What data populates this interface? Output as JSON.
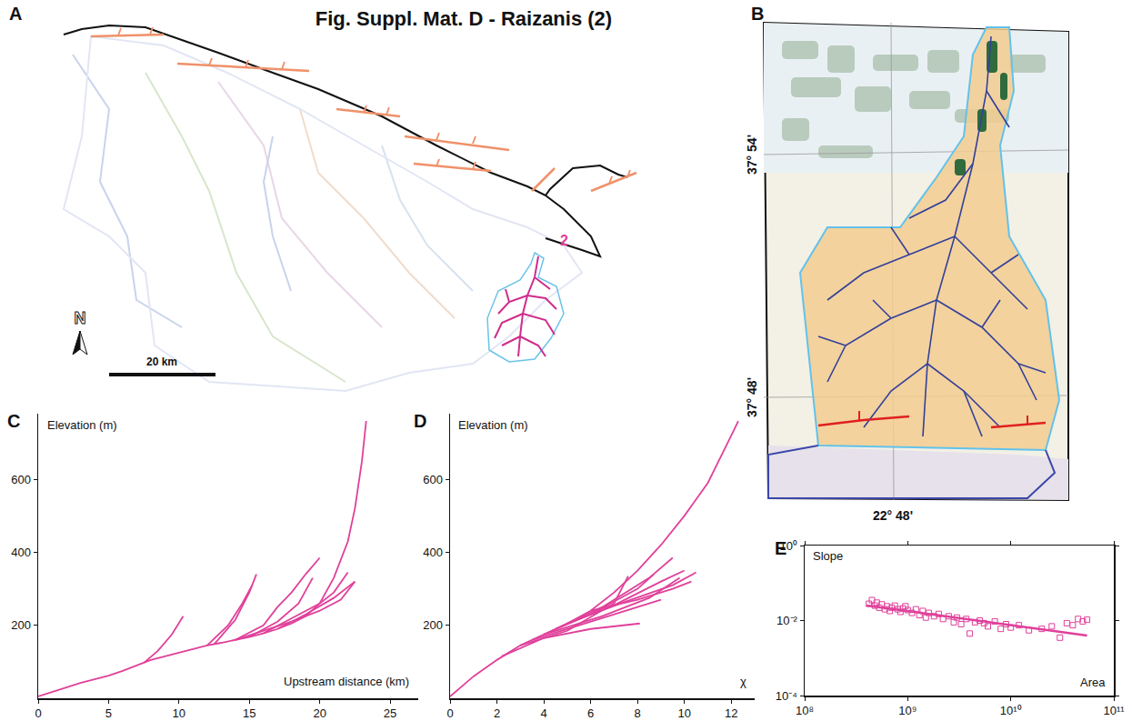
{
  "title": "Fig. Suppl. Mat. D - Raizanis (2)",
  "maps": {
    "A": {
      "panel": "A",
      "label": "2",
      "scale": "20 km",
      "north": "N"
    },
    "B": {
      "panel": "B",
      "lat": [
        "37° 54'",
        "37° 48'"
      ],
      "lon": "22° 48'"
    }
  },
  "chart_data": [
    {
      "panel": "C",
      "type": "line",
      "xlabel": "Upstream distance (km)",
      "ylabel": "Elevation (m)",
      "color": "#e0409a",
      "xlim": [
        0,
        27
      ],
      "ylim": [
        0,
        780
      ],
      "xticks": [
        0,
        5,
        10,
        15,
        20,
        25
      ],
      "yticks": [
        200,
        400,
        600
      ],
      "series": [
        {
          "x": [
            0,
            1,
            2,
            3,
            4,
            5,
            6,
            7,
            8,
            9,
            10,
            11,
            12,
            13,
            14,
            15,
            16,
            17,
            18,
            19,
            20,
            21,
            22,
            22.5,
            23,
            23.3
          ],
          "values": [
            5,
            18,
            30,
            42,
            52,
            62,
            75,
            90,
            105,
            115,
            125,
            135,
            145,
            152,
            160,
            168,
            178,
            190,
            205,
            225,
            260,
            330,
            430,
            520,
            650,
            760
          ]
        },
        {
          "x": [
            7.5,
            8.5,
            9.5,
            10.3
          ],
          "values": [
            97,
            130,
            175,
            225
          ]
        },
        {
          "x": [
            12,
            13.5,
            14.5,
            15.2
          ],
          "values": [
            145,
            200,
            260,
            310
          ]
        },
        {
          "x": [
            12.5,
            14,
            15,
            15.5
          ],
          "values": [
            148,
            215,
            290,
            340
          ]
        },
        {
          "x": [
            14,
            16,
            17,
            18,
            19,
            20
          ],
          "values": [
            160,
            200,
            250,
            290,
            340,
            385
          ]
        },
        {
          "x": [
            15,
            17,
            18.5,
            19.5
          ],
          "values": [
            168,
            210,
            260,
            330
          ]
        },
        {
          "x": [
            16,
            18,
            20,
            21,
            22
          ],
          "values": [
            178,
            220,
            260,
            290,
            345
          ]
        },
        {
          "x": [
            17,
            19,
            21,
            22.5
          ],
          "values": [
            190,
            230,
            275,
            320
          ]
        },
        {
          "x": [
            14,
            16,
            18,
            20,
            21.5,
            22.5
          ],
          "values": [
            160,
            185,
            210,
            240,
            270,
            320
          ]
        }
      ]
    },
    {
      "panel": "D",
      "type": "line",
      "xlabel": "χ",
      "ylabel": "Elevation (m)",
      "color": "#e0409a",
      "xlim": [
        0,
        13
      ],
      "ylim": [
        0,
        780
      ],
      "xticks": [
        0,
        2,
        4,
        6,
        8,
        10,
        12
      ],
      "yticks": [
        200,
        400,
        600
      ],
      "series": [
        {
          "x": [
            0,
            1,
            2,
            3,
            4,
            5,
            6,
            7,
            8,
            9,
            10,
            11,
            12,
            12.3
          ],
          "values": [
            5,
            60,
            105,
            145,
            175,
            205,
            240,
            290,
            350,
            420,
            500,
            590,
            720,
            760
          ]
        },
        {
          "x": [
            2.2,
            4,
            6,
            8.1
          ],
          "values": [
            115,
            165,
            190,
            205
          ]
        },
        {
          "x": [
            3,
            5,
            7,
            7.6
          ],
          "values": [
            145,
            185,
            260,
            335
          ]
        },
        {
          "x": [
            4,
            6,
            8,
            8.7
          ],
          "values": [
            175,
            230,
            300,
            340
          ]
        },
        {
          "x": [
            4.5,
            6.5,
            8.5,
            9.5
          ],
          "values": [
            190,
            250,
            330,
            385
          ]
        },
        {
          "x": [
            5,
            7,
            9,
            10
          ],
          "values": [
            205,
            255,
            320,
            350
          ]
        },
        {
          "x": [
            5,
            7.5,
            9.5,
            10.5
          ],
          "values": [
            205,
            265,
            310,
            345
          ]
        },
        {
          "x": [
            4,
            6.5,
            8.5,
            9.8
          ],
          "values": [
            175,
            225,
            275,
            330
          ]
        },
        {
          "x": [
            6,
            8,
            9.5,
            10.3
          ],
          "values": [
            240,
            270,
            300,
            320
          ]
        },
        {
          "x": [
            3.5,
            5.5,
            7.5,
            9
          ],
          "values": [
            160,
            200,
            240,
            270
          ]
        }
      ]
    },
    {
      "panel": "E",
      "type": "scatter",
      "xlabel": "Area",
      "ylabel": "Slope",
      "color": "#e0409a",
      "log": true,
      "xlim": [
        100000000,
        100000000000
      ],
      "ylim": [
        0.0001,
        1
      ],
      "xticks": [
        {
          "value": 100000000,
          "label": "10⁸"
        },
        {
          "value": 1000000000,
          "label": "10⁹"
        },
        {
          "value": 10000000000,
          "label": "10¹⁰"
        },
        {
          "value": 100000000000,
          "label": "10¹¹"
        }
      ],
      "yticks": [
        {
          "value": 0.0001,
          "label": "10⁻⁴"
        },
        {
          "value": 0.01,
          "label": "10⁻²"
        },
        {
          "value": 1,
          "label": "10⁰"
        }
      ],
      "series": [
        {
          "type": "scatter",
          "marker": "square-open",
          "x": [
            420000000,
            450000000,
            480000000,
            500000000,
            530000000,
            560000000,
            600000000,
            630000000,
            670000000,
            700000000,
            750000000,
            800000000,
            850000000,
            900000000,
            950000000,
            1000000000,
            1100000000,
            1200000000,
            1300000000,
            1400000000,
            1500000000,
            1600000000,
            1800000000,
            2000000000,
            2200000000,
            2500000000,
            2800000000,
            3000000000,
            3300000000,
            3700000000,
            4000000000,
            4500000000,
            5000000000,
            5500000000,
            6000000000,
            7000000000,
            8000000000,
            9000000000,
            10000000000,
            12000000000,
            15000000000,
            20000000000,
            25000000000,
            30000000000,
            35000000000,
            40000000000,
            45000000000,
            50000000000,
            55000000000
          ],
          "values": [
            0.028,
            0.035,
            0.025,
            0.03,
            0.022,
            0.027,
            0.02,
            0.024,
            0.018,
            0.022,
            0.025,
            0.02,
            0.017,
            0.021,
            0.024,
            0.019,
            0.016,
            0.02,
            0.014,
            0.018,
            0.012,
            0.016,
            0.013,
            0.015,
            0.011,
            0.013,
            0.009,
            0.012,
            0.008,
            0.011,
            0.0045,
            0.009,
            0.01,
            0.0085,
            0.007,
            0.0095,
            0.006,
            0.008,
            0.0065,
            0.0075,
            0.0055,
            0.006,
            0.007,
            0.0035,
            0.0085,
            0.0075,
            0.011,
            0.0095,
            0.0105
          ]
        },
        {
          "type": "line",
          "x": [
            400000000,
            55000000000
          ],
          "values": [
            0.025,
            0.004
          ]
        }
      ]
    }
  ]
}
